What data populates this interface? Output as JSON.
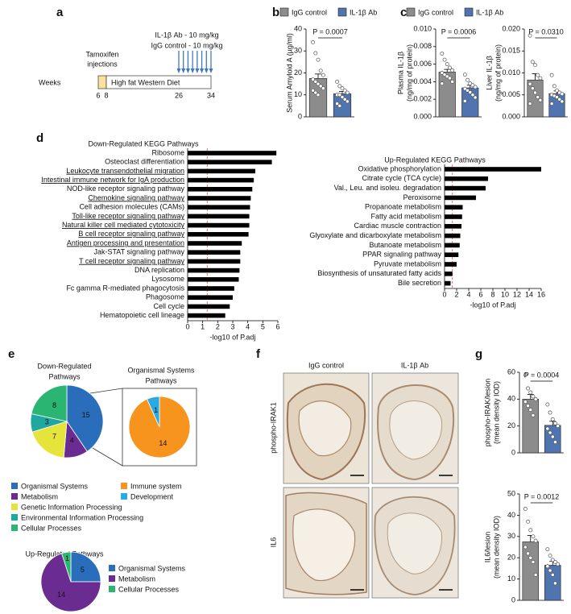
{
  "panel_labels": [
    "a",
    "b",
    "c",
    "d",
    "e",
    "f",
    "g"
  ],
  "timeline": {
    "tamoxifen": [
      "Tamoxifen",
      "injections"
    ],
    "treatments": [
      "IL-1β Ab - 10 mg/kg",
      "IgG control - 10 mg/kg"
    ],
    "weeks_label": "Weeks",
    "weeks": [
      6,
      8,
      26,
      34
    ],
    "diet": "High fat Western Diet",
    "colors": {
      "tamoxifen": "#f8e29c",
      "arrows": "#3b78c4"
    }
  },
  "micrographs": {
    "columns": [
      "IgG control",
      "IL-1β Ab"
    ],
    "rows": [
      "phospho-IRAK1",
      "IL6"
    ]
  },
  "chart_data": [
    {
      "type": "bar",
      "legend": true,
      "ylabel": [
        "Serum Amyloid A (µg/ml)"
      ],
      "categories": [
        "IgG control",
        "IL-1β Ab"
      ],
      "colors": [
        "#8c8c8c",
        "#4f74b0"
      ],
      "values": [
        17.5,
        10.5
      ],
      "errors": [
        2.0,
        1.1
      ],
      "points": [
        [
          34,
          29,
          26,
          21,
          19,
          17,
          16,
          15,
          14,
          13,
          12,
          11,
          10
        ],
        [
          16,
          14,
          13,
          12,
          11,
          10,
          10,
          9,
          8,
          7,
          6,
          5
        ]
      ],
      "ylim": [
        0,
        40
      ],
      "yticks": [
        0,
        10,
        20,
        30,
        40
      ],
      "annotation": "P = 0.0007"
    },
    {
      "type": "bar",
      "legend": true,
      "ylabel": [
        "Plasma IL-1β",
        "(ng/mg of protein)"
      ],
      "categories": [
        "IgG control",
        "IL-1β Ab"
      ],
      "colors": [
        "#8c8c8c",
        "#4f74b0"
      ],
      "values": [
        0.0051,
        0.0033
      ],
      "errors": [
        0.0003,
        0.0003
      ],
      "points": [
        [
          0.0072,
          0.0065,
          0.006,
          0.0056,
          0.0053,
          0.005,
          0.0048,
          0.0046,
          0.0044,
          0.004,
          0.0038
        ],
        [
          0.0048,
          0.0042,
          0.0038,
          0.0036,
          0.0034,
          0.0032,
          0.003,
          0.0028,
          0.0025,
          0.0022,
          0.0018
        ]
      ],
      "ylim": [
        0,
        0.01
      ],
      "yticks": [
        {
          "value": 0,
          "label": "0.000"
        },
        {
          "value": 0.002,
          "label": "0.002"
        },
        {
          "value": 0.004,
          "label": "0.004"
        },
        {
          "value": 0.006,
          "label": "0.006"
        },
        {
          "value": 0.008,
          "label": "0.008"
        },
        {
          "value": 0.01,
          "label": "0.010"
        }
      ],
      "annotation": "P = 0.0006"
    },
    {
      "type": "bar",
      "legend": false,
      "ylabel": [
        "Liver IL-1β",
        "(ng/mg of protein)"
      ],
      "categories": [
        "IgG control",
        "IL-1β Ab"
      ],
      "colors": [
        "#8c8c8c",
        "#4f74b0"
      ],
      "values": [
        0.0084,
        0.0053
      ],
      "errors": [
        0.0014,
        0.0006
      ],
      "points": [
        [
          0.0185,
          0.0125,
          0.0118,
          0.0095,
          0.0088,
          0.0075,
          0.0065,
          0.0055,
          0.0045,
          0.0038,
          0.003
        ],
        [
          0.0095,
          0.007,
          0.006,
          0.0055,
          0.0052,
          0.005,
          0.0048,
          0.0045,
          0.004,
          0.0035,
          0.003
        ]
      ],
      "ylim": [
        0,
        0.02
      ],
      "yticks": [
        {
          "value": 0,
          "label": "0.000"
        },
        {
          "value": 0.005,
          "label": "0.005"
        },
        {
          "value": 0.01,
          "label": "0.010"
        },
        {
          "value": 0.015,
          "label": "0.015"
        },
        {
          "value": 0.02,
          "label": "0.020"
        }
      ],
      "annotation": "P = 0.0310"
    },
    {
      "type": "hbar",
      "title": "Down-Regulated KEGG Pathways",
      "categories": [
        "Ribosome",
        "Osteoclast differentiation",
        "Leukocyte transendothelial migration",
        "Intestinal immune network for IgA production",
        "NOD-like receptor signaling pathway",
        "Chemokine signaling pathway",
        "Cell adhesion molecules (CAMs)",
        "Toll-like receptor signaling pathway",
        "Natural killer cell mediated cytotoxicity",
        "B cell receptor signaling pathway",
        "Antigen processing and presentation",
        "Jak-STAT signaling pathway",
        "T cell receptor signaling pathway",
        "DNA replication",
        "Lysosome",
        "Fc gamma R-mediated phagocytosis",
        "Phagosome",
        "Cell cycle",
        "Hematopoietic cell lineage"
      ],
      "underline": [
        false,
        false,
        true,
        true,
        false,
        true,
        false,
        true,
        true,
        true,
        true,
        false,
        true,
        false,
        false,
        false,
        false,
        false,
        false
      ],
      "values": [
        5.9,
        5.6,
        4.5,
        4.4,
        4.3,
        4.2,
        4.15,
        4.1,
        4.1,
        4.05,
        3.6,
        3.5,
        3.5,
        3.45,
        3.4,
        3.1,
        3.0,
        2.8,
        2.5
      ],
      "color": "#000000",
      "xlim": [
        0,
        6
      ],
      "xticks": [
        0,
        1,
        2,
        3,
        4,
        5,
        6
      ],
      "xlabel": "-log10 of P.adj",
      "threshold": 1.3,
      "threshold_color": "#d9534f"
    },
    {
      "type": "hbar",
      "title": "Up-Regulated KEGG Pathways",
      "categories": [
        "Oxidative phosphorylation",
        "Citrate cycle (TCA cycle)",
        "Val., Leu. and isoleu. degradation",
        "Peroxisome",
        "Propanoate metabolism",
        "Fatty acid metabolism",
        "Cardiac muscle contraction",
        "Glyoxylate and dicarboxylate metabolism",
        "Butanoate metabolism",
        "PPAR signaling pathway",
        "Pyruvate metabolism",
        "Biosynthesis of unsaturated fatty acids",
        "Bile secretion"
      ],
      "underline": [
        false,
        false,
        false,
        false,
        false,
        false,
        false,
        false,
        false,
        false,
        false,
        false,
        false
      ],
      "values": [
        16,
        7.2,
        6.8,
        5.2,
        3.0,
        2.9,
        2.8,
        2.6,
        2.5,
        2.3,
        2.0,
        1.3,
        1.0
      ],
      "color": "#000000",
      "xlim": [
        0,
        16
      ],
      "xticks": [
        0,
        2,
        4,
        6,
        8,
        10,
        12,
        14,
        16
      ],
      "xlabel": "-log10 of P.adj",
      "threshold": 1.3,
      "threshold_color": "#d9534f"
    },
    {
      "type": "pie",
      "title": [
        "Down-Regulated",
        "Pathways"
      ],
      "categories": [
        "Organismal Systems",
        "Metabolism",
        "Genetic Information Processing",
        "Environmental Information Processing",
        "Cellular Processes"
      ],
      "values": [
        15,
        4,
        7,
        3,
        8
      ],
      "colors": [
        "#2a6ebb",
        "#6a2c91",
        "#e4e43a",
        "#1fa7a0",
        "#2bb573"
      ]
    },
    {
      "type": "pie",
      "title": [
        "Organismal Systems",
        "Pathways"
      ],
      "categories": [
        "Immune system",
        "Development"
      ],
      "values": [
        14,
        1
      ],
      "colors": [
        "#f7941d",
        "#29abe2"
      ]
    },
    {
      "type": "pie",
      "title": [
        "Up-Regulated Pathways"
      ],
      "categories": [
        "Organismal Systems",
        "Metabolism",
        "Cellular Processes"
      ],
      "values": [
        5,
        14,
        1
      ],
      "colors": [
        "#2a6ebb",
        "#6a2c91",
        "#2bb573"
      ]
    },
    {
      "type": "bar",
      "legend": false,
      "ylabel": [
        "phospho-IRAK/lesion",
        "(mean density IOD)"
      ],
      "categories": [
        "IgG control",
        "IL-1β Ab"
      ],
      "colors": [
        "#8c8c8c",
        "#4f74b0"
      ],
      "values": [
        40,
        20.5
      ],
      "errors": [
        3.5,
        3
      ],
      "points": [
        [
          58,
          48,
          45,
          42,
          40,
          38,
          35,
          32,
          28
        ],
        [
          36,
          30,
          25,
          22,
          20,
          18,
          15,
          12,
          8
        ]
      ],
      "ylim": [
        0,
        60
      ],
      "yticks": [
        0,
        20,
        40,
        60
      ],
      "annotation": "P = 0.0004"
    },
    {
      "type": "bar",
      "legend": false,
      "ylabel": [
        "IL6/lesion",
        "(mean density IOD)"
      ],
      "categories": [
        "IgG control",
        "IL-1β Ab"
      ],
      "colors": [
        "#8c8c8c",
        "#4f74b0"
      ],
      "values": [
        27.5,
        16.5
      ],
      "errors": [
        3,
        1.8
      ],
      "points": [
        [
          43,
          37,
          33,
          30,
          28,
          25,
          22,
          20,
          18,
          12
        ],
        [
          24,
          21,
          19,
          18,
          17,
          16,
          14,
          12,
          8
        ]
      ],
      "ylim": [
        0,
        50
      ],
      "yticks": [
        0,
        10,
        20,
        30,
        40,
        50
      ],
      "annotation": "P = 0.0012"
    }
  ]
}
